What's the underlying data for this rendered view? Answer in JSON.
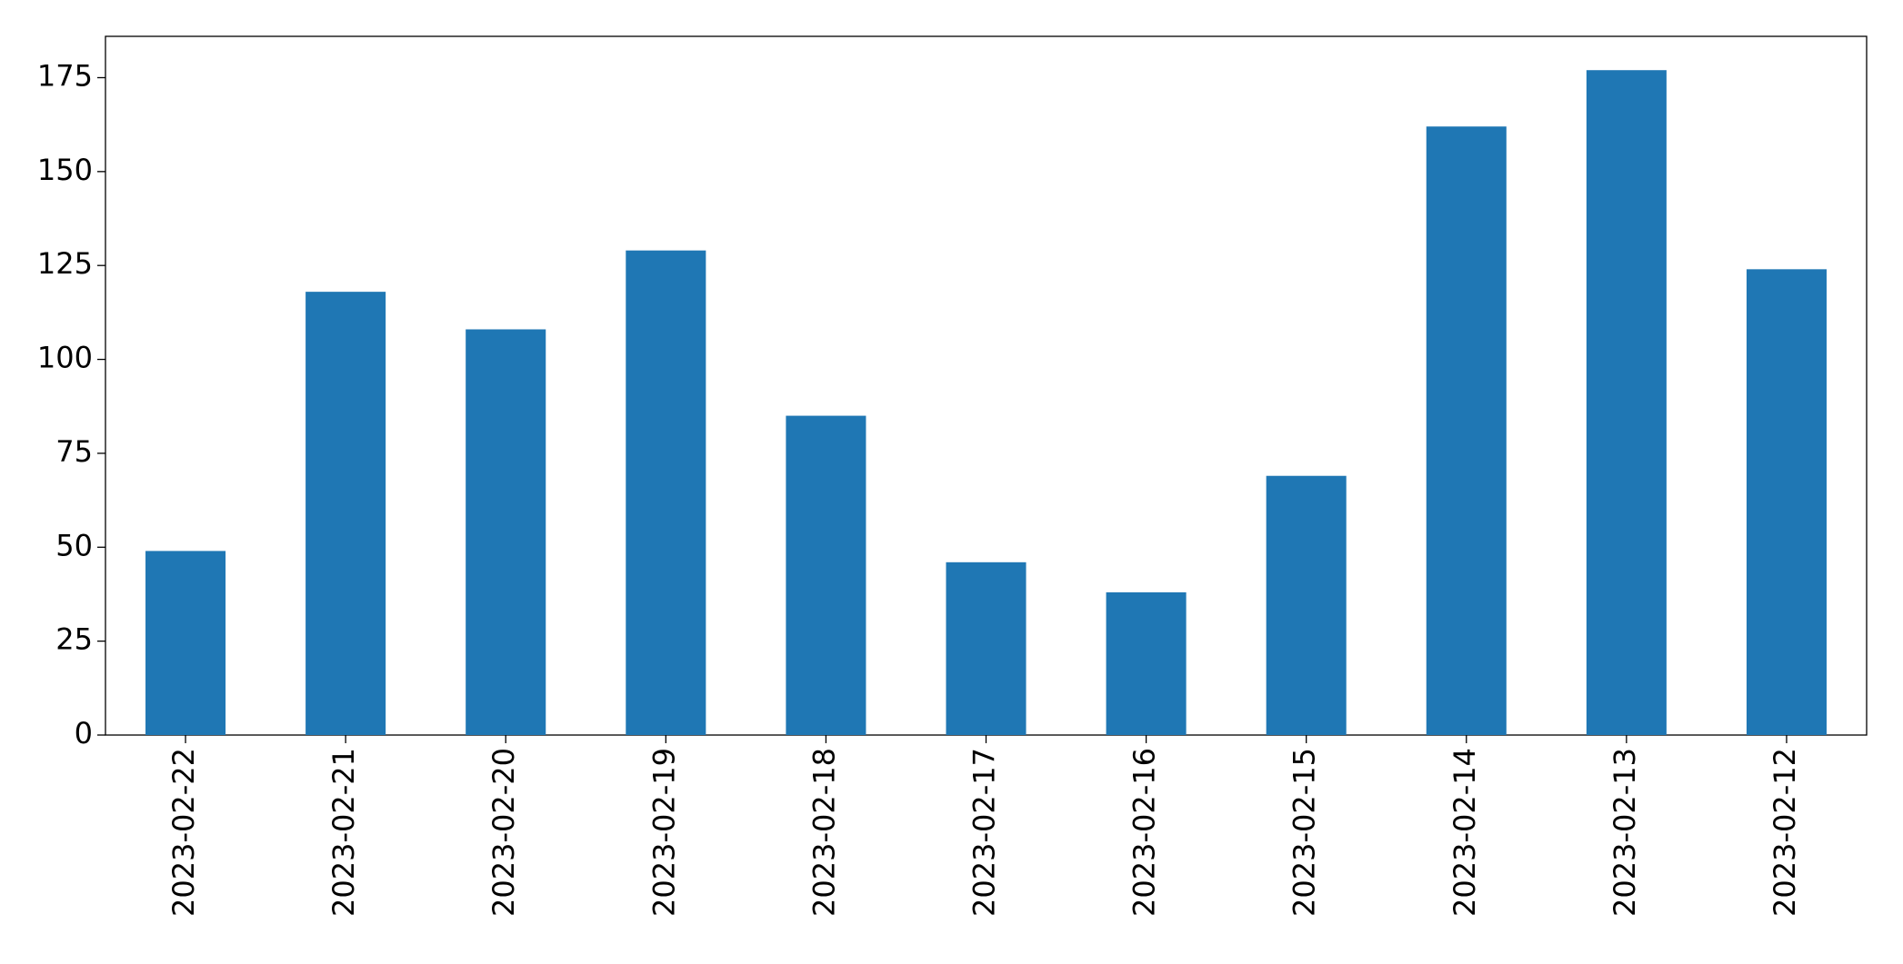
{
  "chart_data": {
    "type": "bar",
    "categories": [
      "2023-02-22",
      "2023-02-21",
      "2023-02-20",
      "2023-02-19",
      "2023-02-18",
      "2023-02-17",
      "2023-02-16",
      "2023-02-15",
      "2023-02-14",
      "2023-02-13",
      "2023-02-12"
    ],
    "values": [
      49,
      118,
      108,
      129,
      85,
      46,
      38,
      69,
      162,
      177,
      124
    ],
    "color": "#1f77b4",
    "ylim": [
      0,
      186
    ],
    "yticks": [
      0,
      25,
      50,
      75,
      100,
      125,
      150,
      175
    ],
    "grid": false
  }
}
